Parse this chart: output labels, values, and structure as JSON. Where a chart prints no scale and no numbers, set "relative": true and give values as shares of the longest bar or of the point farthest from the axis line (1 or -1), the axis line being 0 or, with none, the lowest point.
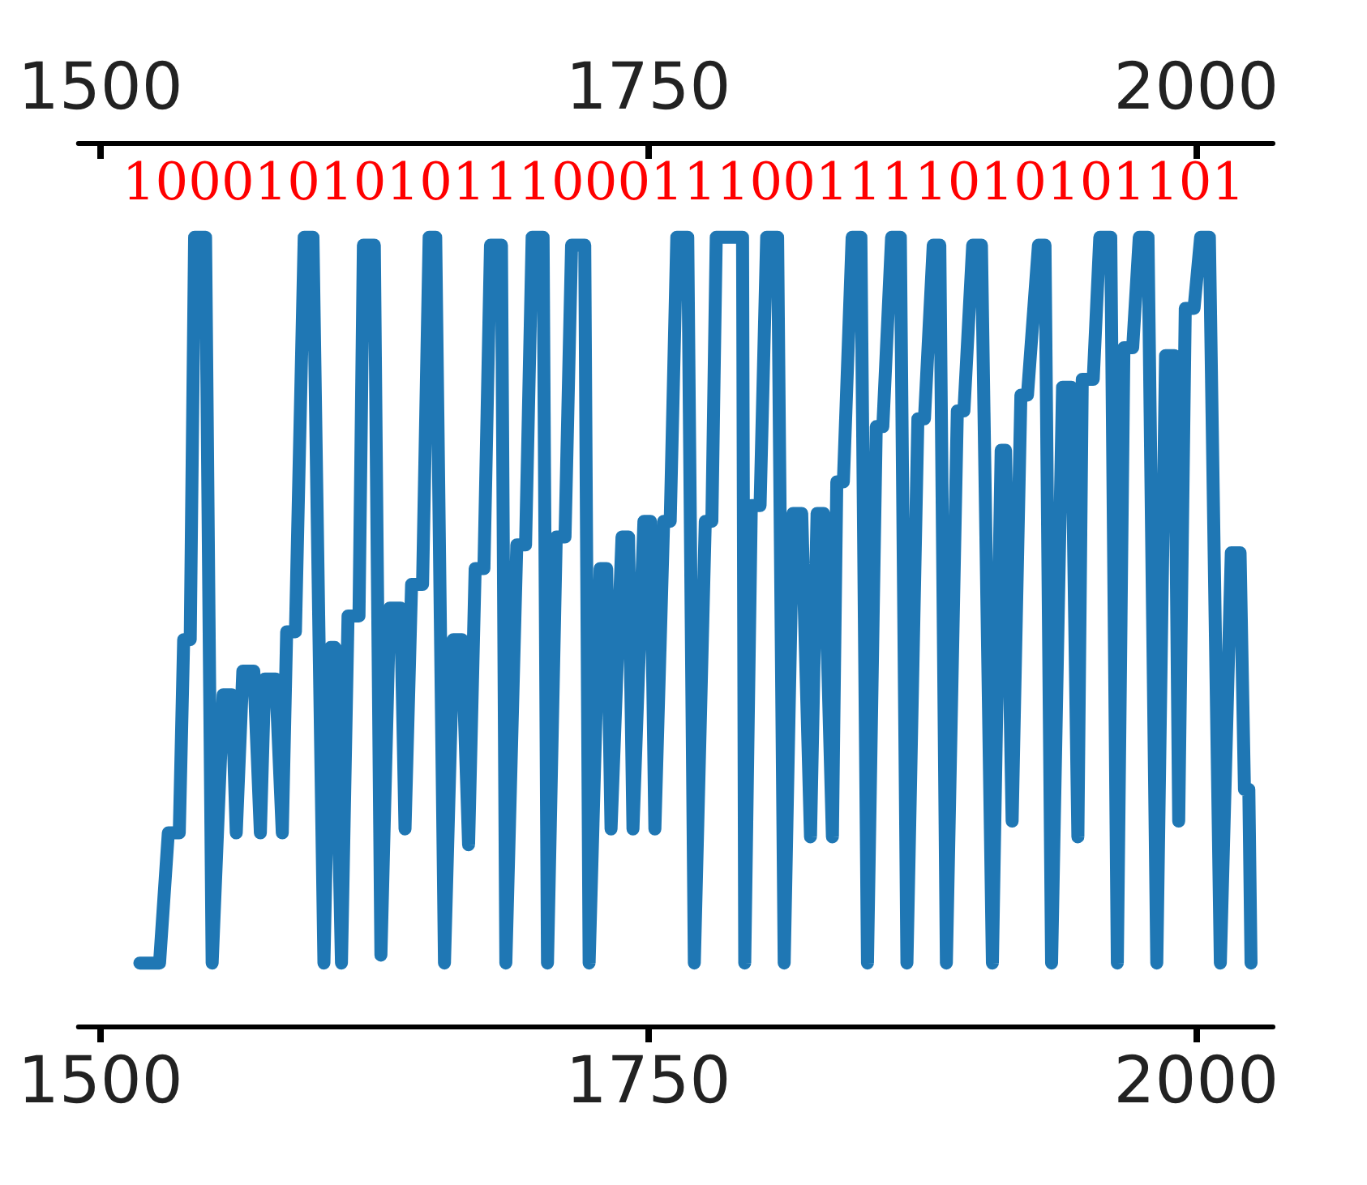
{
  "chart_data": {
    "type": "line",
    "relative": true,
    "grid": false,
    "marker": "none",
    "line_style": "solid",
    "xlim": [
      1490,
      2035
    ],
    "xticks": [
      1500,
      1750,
      2000
    ],
    "x2lim": [
      1490,
      2035
    ],
    "x2ticks": [
      1500,
      1750,
      2000
    ],
    "annotations": [
      "1000101010111000111001111010101101"
    ],
    "x": [
      1518,
      1527,
      1531,
      1536,
      1538,
      1541,
      1543,
      1548,
      1551,
      1556,
      1560,
      1562,
      1565,
      1570,
      1573,
      1575,
      1580,
      1583,
      1585,
      1589,
      1593,
      1597,
      1602,
      1605,
      1607,
      1610,
      1613,
      1618,
      1620,
      1625,
      1628,
      1632,
      1637,
      1639,
      1642,
      1647,
      1650,
      1653,
      1657,
      1661,
      1665,
      1668,
      1671,
      1675,
      1678,
      1683,
      1685,
      1690,
      1694,
      1697,
      1702,
      1704,
      1708,
      1712,
      1715,
      1721,
      1723,
      1728,
      1731,
      1733,
      1738,
      1741,
      1743,
      1748,
      1751,
      1753,
      1757,
      1760,
      1763,
      1768,
      1771,
      1776,
      1779,
      1781,
      1793,
      1794,
      1797,
      1801,
      1804,
      1809,
      1812,
      1816,
      1820,
      1824,
      1827,
      1830,
      1834,
      1836,
      1839,
      1843,
      1847,
      1850,
      1854,
      1857,
      1861,
      1865,
      1868,
      1873,
      1876,
      1880,
      1883,
      1886,
      1891,
      1894,
      1898,
      1902,
      1907,
      1911,
      1913,
      1916,
      1920,
      1923,
      1928,
      1931,
      1934,
      1939,
      1943,
      1946,
      1948,
      1953,
      1956,
      1961,
      1964,
      1967,
      1971,
      1974,
      1978,
      1982,
      1986,
      1990,
      1992,
      1995,
      1999,
      2002,
      2006,
      2011,
      2016,
      2020,
      2022,
      2024,
      2025
    ],
    "series": [
      {
        "color": "#1f77b4",
        "values": [
          0.08,
          0.08,
          0.245,
          0.245,
          0.49,
          0.49,
          1.0,
          1.0,
          0.08,
          0.42,
          0.42,
          0.245,
          0.45,
          0.45,
          0.245,
          0.44,
          0.44,
          0.245,
          0.5,
          0.5,
          1.0,
          1.0,
          0.08,
          0.48,
          0.48,
          0.08,
          0.52,
          0.52,
          0.99,
          0.99,
          0.09,
          0.53,
          0.53,
          0.25,
          0.56,
          0.56,
          1.0,
          1.0,
          0.08,
          0.49,
          0.49,
          0.23,
          0.58,
          0.58,
          0.99,
          0.99,
          0.08,
          0.61,
          0.61,
          1.0,
          1.0,
          0.08,
          0.62,
          0.62,
          0.99,
          0.99,
          0.08,
          0.58,
          0.58,
          0.25,
          0.62,
          0.62,
          0.25,
          0.64,
          0.64,
          0.25,
          0.64,
          0.64,
          1.0,
          1.0,
          0.08,
          0.64,
          0.64,
          1.0,
          1.0,
          0.08,
          0.66,
          0.66,
          1.0,
          1.0,
          0.08,
          0.65,
          0.65,
          0.24,
          0.65,
          0.65,
          0.24,
          0.69,
          0.69,
          1.0,
          1.0,
          0.08,
          0.76,
          0.76,
          1.0,
          1.0,
          0.08,
          0.77,
          0.77,
          0.99,
          0.99,
          0.08,
          0.78,
          0.78,
          0.99,
          0.99,
          0.08,
          0.73,
          0.73,
          0.26,
          0.8,
          0.8,
          0.99,
          0.99,
          0.08,
          0.81,
          0.81,
          0.24,
          0.82,
          0.82,
          1.0,
          1.0,
          0.08,
          0.86,
          0.86,
          1.0,
          1.0,
          0.08,
          0.85,
          0.85,
          0.26,
          0.91,
          0.91,
          1.0,
          1.0,
          0.08,
          0.6,
          0.6,
          0.3,
          0.3,
          0.08
        ]
      }
    ]
  }
}
